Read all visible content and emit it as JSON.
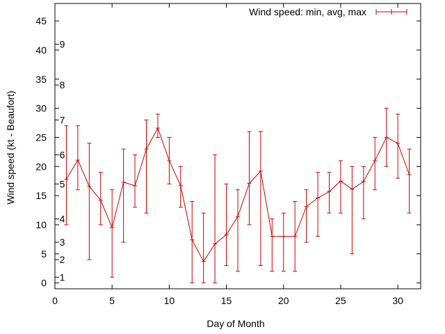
{
  "chart_data": {
    "type": "line",
    "title": "",
    "xlabel": "Day of Month",
    "ylabel": "Wind speed (kt - Beaufort)",
    "xlim": [
      0,
      32
    ],
    "ylim": [
      -1,
      48
    ],
    "x_ticks": [
      0,
      5,
      10,
      15,
      20,
      25,
      30
    ],
    "y_ticks": [
      0,
      5,
      10,
      15,
      20,
      25,
      30,
      35,
      40,
      45
    ],
    "grid": false,
    "legend_position": "top-right",
    "beaufort_scale": [
      {
        "label": "1",
        "kt": 1
      },
      {
        "label": "2",
        "kt": 4
      },
      {
        "label": "3",
        "kt": 7
      },
      {
        "label": "4",
        "kt": 11
      },
      {
        "label": "5",
        "kt": 17
      },
      {
        "label": "6",
        "kt": 22
      },
      {
        "label": "7",
        "kt": 28
      },
      {
        "label": "8",
        "kt": 34
      },
      {
        "label": "9",
        "kt": 41
      }
    ],
    "series": [
      {
        "name": "Wind speed: min, avg, max",
        "color": "#cc0000",
        "points": [
          {
            "x": 1,
            "min": 10,
            "avg": 17.8,
            "max": 27
          },
          {
            "x": 2,
            "min": 16,
            "avg": 21.1,
            "max": 27
          },
          {
            "x": 3,
            "min": 4,
            "avg": 16.6,
            "max": 24
          },
          {
            "x": 4,
            "min": 10,
            "avg": 14.2,
            "max": 19
          },
          {
            "x": 5,
            "min": 1,
            "avg": 9.5,
            "max": 16
          },
          {
            "x": 6,
            "min": 7,
            "avg": 17.3,
            "max": 23
          },
          {
            "x": 7,
            "min": 13,
            "avg": 16.7,
            "max": 22
          },
          {
            "x": 8,
            "min": 12,
            "avg": 23.0,
            "max": 28
          },
          {
            "x": 9,
            "min": 25,
            "avg": 26.6,
            "max": 29
          },
          {
            "x": 10,
            "min": 17,
            "avg": 21.0,
            "max": 25
          },
          {
            "x": 11,
            "min": 13,
            "avg": 16.7,
            "max": 20
          },
          {
            "x": 12,
            "min": 0,
            "avg": 7.4,
            "max": 14
          },
          {
            "x": 13,
            "min": 0,
            "avg": 3.7,
            "max": 12
          },
          {
            "x": 14,
            "min": 0,
            "avg": 6.7,
            "max": 22
          },
          {
            "x": 15,
            "min": 3,
            "avg": 8.3,
            "max": 17
          },
          {
            "x": 16,
            "min": 2,
            "avg": 11.4,
            "max": 16
          },
          {
            "x": 17,
            "min": 10,
            "avg": 17.1,
            "max": 26
          },
          {
            "x": 18,
            "min": 3,
            "avg": 19.2,
            "max": 26
          },
          {
            "x": 19,
            "min": 2,
            "avg": 8.0,
            "max": 11
          },
          {
            "x": 20,
            "min": 2,
            "avg": 8.0,
            "max": 12
          },
          {
            "x": 21,
            "min": 2,
            "avg": 8.0,
            "max": 14
          },
          {
            "x": 22,
            "min": 7,
            "avg": 13.1,
            "max": 16
          },
          {
            "x": 23,
            "min": 8,
            "avg": 14.6,
            "max": 19
          },
          {
            "x": 24,
            "min": 12,
            "avg": 15.7,
            "max": 19
          },
          {
            "x": 25,
            "min": 12,
            "avg": 17.5,
            "max": 21
          },
          {
            "x": 26,
            "min": 5,
            "avg": 16.1,
            "max": 20
          },
          {
            "x": 27,
            "min": 11,
            "avg": 17.4,
            "max": 20
          },
          {
            "x": 28,
            "min": 16,
            "avg": 21.0,
            "max": 25
          },
          {
            "x": 29,
            "min": 20,
            "avg": 25.0,
            "max": 30
          },
          {
            "x": 30,
            "min": 18,
            "avg": 24.0,
            "max": 29
          },
          {
            "x": 31,
            "min": 12,
            "avg": 18.6,
            "max": 23
          }
        ]
      }
    ]
  }
}
